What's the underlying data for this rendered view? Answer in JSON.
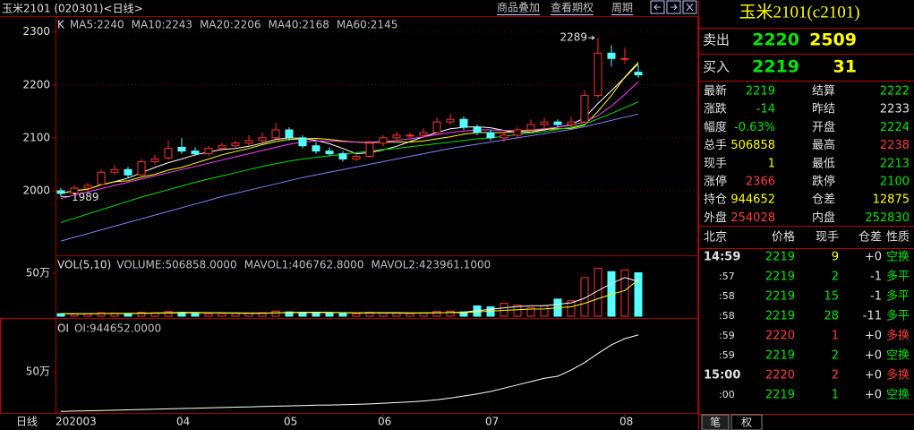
{
  "header": {
    "title": "玉米2101 (020301)<日线>",
    "links": [
      "商品叠加",
      "查看期权",
      "周期"
    ]
  },
  "chart_data": [
    {
      "type": "candlestick",
      "label": "K",
      "up_color": "#ff3232",
      "down_color": "#54ffff",
      "grid": true,
      "ylim": [
        1878,
        2330
      ],
      "yticks": [
        2000,
        2100,
        2200,
        2300
      ],
      "candles": [
        [
          2000,
          2005,
          1989,
          1995
        ],
        [
          1995,
          2010,
          1992,
          2005
        ],
        [
          2005,
          2015,
          2000,
          2010
        ],
        [
          2012,
          2040,
          2010,
          2035
        ],
        [
          2035,
          2048,
          2030,
          2040
        ],
        [
          2040,
          2045,
          2025,
          2030
        ],
        [
          2030,
          2060,
          2028,
          2055
        ],
        [
          2055,
          2068,
          2050,
          2060
        ],
        [
          2062,
          2095,
          2058,
          2080
        ],
        [
          2082,
          2100,
          2070,
          2075
        ],
        [
          2075,
          2082,
          2065,
          2070
        ],
        [
          2070,
          2085,
          2066,
          2080
        ],
        [
          2080,
          2090,
          2075,
          2085
        ],
        [
          2085,
          2095,
          2080,
          2090
        ],
        [
          2090,
          2105,
          2085,
          2095
        ],
        [
          2095,
          2110,
          2090,
          2100
        ],
        [
          2100,
          2128,
          2098,
          2115
        ],
        [
          2115,
          2120,
          2095,
          2100
        ],
        [
          2100,
          2105,
          2080,
          2085
        ],
        [
          2085,
          2092,
          2070,
          2075
        ],
        [
          2075,
          2082,
          2065,
          2070
        ],
        [
          2070,
          2075,
          2055,
          2060
        ],
        [
          2060,
          2072,
          2056,
          2065
        ],
        [
          2065,
          2095,
          2062,
          2090
        ],
        [
          2090,
          2105,
          2085,
          2100
        ],
        [
          2100,
          2112,
          2095,
          2105
        ],
        [
          2105,
          2110,
          2098,
          2105
        ],
        [
          2105,
          2118,
          2100,
          2110
        ],
        [
          2110,
          2138,
          2108,
          2130
        ],
        [
          2130,
          2145,
          2125,
          2135
        ],
        [
          2135,
          2140,
          2115,
          2120
        ],
        [
          2120,
          2125,
          2105,
          2110
        ],
        [
          2110,
          2115,
          2095,
          2100
        ],
        [
          2100,
          2110,
          2092,
          2105
        ],
        [
          2105,
          2120,
          2100,
          2115
        ],
        [
          2115,
          2135,
          2110,
          2125
        ],
        [
          2125,
          2138,
          2118,
          2130
        ],
        [
          2130,
          2135,
          2120,
          2125
        ],
        [
          2125,
          2140,
          2122,
          2130
        ],
        [
          2130,
          2190,
          2128,
          2180
        ],
        [
          2180,
          2289,
          2175,
          2260
        ],
        [
          2260,
          2275,
          2235,
          2250
        ],
        [
          2250,
          2270,
          2240,
          2250
        ],
        [
          2224,
          2238,
          2213,
          2219
        ]
      ],
      "series": [
        {
          "name": "MA5:2240",
          "color": "#ffffff",
          "values": [
            1995,
            2000,
            2003,
            2011,
            2017,
            2024,
            2034,
            2044,
            2053,
            2060,
            2068,
            2073,
            2078,
            2080,
            2084,
            2090,
            2097,
            2100,
            2099,
            2095,
            2089,
            2080,
            2070,
            2072,
            2077,
            2084,
            2093,
            2102,
            2110,
            2117,
            2120,
            2121,
            2119,
            2114,
            2110,
            2111,
            2115,
            2120,
            2125,
            2138,
            2165,
            2189,
            2214,
            2240
          ]
        },
        {
          "name": "MA10:2243",
          "color": "#ffff00",
          "values": [
            1995,
            2000,
            2003,
            2011,
            2017,
            2019,
            2026,
            2031,
            2039,
            2044,
            2052,
            2060,
            2068,
            2074,
            2080,
            2087,
            2093,
            2097,
            2098,
            2099,
            2097,
            2094,
            2092,
            2091,
            2092,
            2092,
            2092,
            2094,
            2098,
            2102,
            2107,
            2110,
            2110,
            2110,
            2112,
            2114,
            2116,
            2117,
            2118,
            2124,
            2150,
            2180,
            2215,
            2243
          ]
        },
        {
          "name": "MA20:2206",
          "color": "#ff40ff",
          "values": [
            1985,
            1992,
            1998,
            2004,
            2010,
            2016,
            2022,
            2028,
            2034,
            2040,
            2046,
            2052,
            2058,
            2064,
            2070,
            2076,
            2082,
            2088,
            2092,
            2094,
            2094,
            2093,
            2092,
            2092,
            2093,
            2095,
            2098,
            2102,
            2106,
            2110,
            2113,
            2115,
            2115,
            2114,
            2114,
            2115,
            2117,
            2120,
            2124,
            2130,
            2142,
            2160,
            2182,
            2206
          ]
        },
        {
          "name": "MA40:2168",
          "color": "#00e000",
          "values": [
            1940,
            1948,
            1956,
            1964,
            1972,
            1980,
            1988,
            1995,
            2002,
            2009,
            2016,
            2022,
            2028,
            2034,
            2040,
            2046,
            2051,
            2056,
            2060,
            2063,
            2066,
            2069,
            2072,
            2075,
            2078,
            2080,
            2083,
            2086,
            2089,
            2092,
            2095,
            2098,
            2100,
            2103,
            2106,
            2109,
            2112,
            2116,
            2120,
            2126,
            2136,
            2146,
            2157,
            2168
          ]
        },
        {
          "name": "MA60:2145",
          "color": "#8080ff",
          "values": [
            1905,
            1912,
            1919,
            1926,
            1933,
            1940,
            1947,
            1954,
            1961,
            1968,
            1975,
            1982,
            1989,
            1995,
            2001,
            2007,
            2013,
            2019,
            2025,
            2030,
            2035,
            2040,
            2045,
            2050,
            2055,
            2060,
            2065,
            2070,
            2075,
            2080,
            2084,
            2088,
            2092,
            2096,
            2100,
            2104,
            2108,
            2112,
            2116,
            2121,
            2127,
            2133,
            2139,
            2145
          ]
        }
      ],
      "annotations": [
        2289,
        1989
      ]
    },
    {
      "type": "bar",
      "label": "VOL(5,10)",
      "ylim": [
        0,
        700000
      ],
      "yticks": [
        {
          "value": 500000,
          "label": "50万"
        }
      ],
      "series": [
        {
          "name": "VOLUME:506858.0000",
          "color": "#c0c0c0",
          "values": [
            30000,
            25000,
            28000,
            40000,
            35000,
            30000,
            45000,
            40000,
            55000,
            45000,
            35000,
            30000,
            32000,
            34000,
            36000,
            40000,
            60000,
            50000,
            45000,
            40000,
            35000,
            38000,
            30000,
            45000,
            40000,
            35000,
            32000,
            38000,
            55000,
            60000,
            50000,
            120000,
            110000,
            150000,
            130000,
            100000,
            120000,
            200000,
            180000,
            450000,
            560000,
            520000,
            540000,
            506858
          ]
        },
        {
          "name": "MAVOL1:406762.8000",
          "color": "#ffffff",
          "values": [
            30000,
            28000,
            28000,
            31000,
            32000,
            32000,
            36000,
            38000,
            41000,
            43000,
            44000,
            41000,
            39000,
            35000,
            33000,
            34000,
            40000,
            44000,
            46000,
            47000,
            46000,
            42000,
            38000,
            38000,
            38000,
            38000,
            36000,
            38000,
            40000,
            44000,
            47000,
            65000,
            79000,
            98000,
            112000,
            122000,
            122000,
            140000,
            156000,
            210000,
            298000,
            382000,
            450000,
            406762.8
          ]
        },
        {
          "name": "MAVOL2:423961.1000",
          "color": "#ffff00",
          "values": [
            30000,
            28000,
            28000,
            31000,
            32000,
            32000,
            34000,
            35000,
            37000,
            38000,
            39000,
            40000,
            40000,
            40000,
            38000,
            38000,
            40000,
            41000,
            42000,
            42000,
            42000,
            41000,
            40000,
            41000,
            42000,
            42000,
            40000,
            40000,
            41000,
            42000,
            42000,
            51000,
            58000,
            68000,
            75000,
            84000,
            85000,
            98000,
            110000,
            150000,
            205000,
            255000,
            300000,
            423961.1
          ]
        }
      ]
    },
    {
      "type": "line",
      "label": "OI",
      "x_label": "日线",
      "ylim": [
        0,
        1150000
      ],
      "yticks": [
        {
          "value": 500000,
          "label": "50万"
        }
      ],
      "categories": [
        "202003",
        null,
        null,
        null,
        null,
        null,
        null,
        null,
        null,
        "04",
        null,
        null,
        null,
        null,
        null,
        null,
        null,
        "05",
        null,
        null,
        null,
        null,
        null,
        null,
        "06",
        null,
        null,
        null,
        null,
        null,
        null,
        null,
        "07",
        null,
        null,
        null,
        null,
        null,
        null,
        null,
        null,
        null,
        "08",
        null
      ],
      "series": [
        {
          "name": "OI:944652.0000",
          "color": "#ffffff",
          "values": [
            20000,
            23000,
            26000,
            30000,
            34000,
            38000,
            42000,
            46000,
            50000,
            54000,
            58000,
            62000,
            66000,
            70000,
            74000,
            78000,
            82000,
            86000,
            90000,
            94000,
            97000,
            100000,
            104000,
            110000,
            118000,
            126000,
            135000,
            145000,
            160000,
            180000,
            205000,
            230000,
            260000,
            300000,
            340000,
            380000,
            420000,
            445000,
            520000,
            610000,
            720000,
            826000,
            900000,
            944652
          ]
        }
      ]
    }
  ],
  "quote": {
    "title": "玉米2101(c2101)",
    "ask": [
      "卖出",
      2220,
      2509
    ],
    "bid": [
      "买入",
      2219,
      31
    ],
    "stats": [
      [
        "最新",
        2219,
        "结算",
        2222
      ],
      [
        "涨跌",
        -14,
        "昨结",
        2233
      ],
      [
        "幅度",
        "-0.63%",
        "开盘",
        2224
      ],
      [
        "总手",
        506858,
        "最高",
        2238
      ],
      [
        "现手",
        1,
        "最低",
        2213
      ],
      [
        "涨停",
        2366,
        "跌停",
        2100
      ],
      [
        "持仓",
        944652,
        "仓差",
        12875
      ],
      [
        "外盘",
        254028,
        "内盘",
        252830
      ]
    ],
    "ticks_header": [
      "北京",
      "价格",
      "现手",
      "仓差",
      "性质"
    ],
    "ticks": [
      [
        "14:59",
        2219,
        9,
        "+0",
        "空换"
      ],
      [
        ":57",
        2219,
        2,
        -1,
        "多平"
      ],
      [
        ":58",
        2219,
        15,
        -1,
        "多平"
      ],
      [
        ":58",
        2219,
        28,
        -11,
        "多平"
      ],
      [
        ":59",
        2220,
        1,
        "+0",
        "多换"
      ],
      [
        ":59",
        2219,
        2,
        "+0",
        "空换"
      ],
      [
        "15:00",
        2220,
        2,
        "+0",
        "多换"
      ],
      [
        ":00",
        2219,
        1,
        "+0",
        "空换"
      ]
    ],
    "tabs": [
      "笔",
      "权"
    ]
  }
}
